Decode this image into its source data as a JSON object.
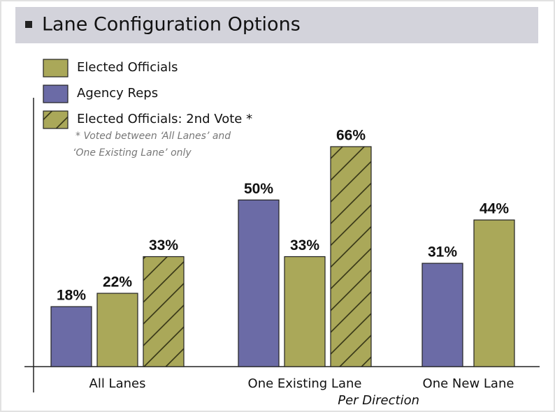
{
  "chart_data": {
    "type": "bar",
    "title": "Lane Configuration Options",
    "categories": [
      "All Lanes",
      "One Existing Lane",
      "One New Lane"
    ],
    "annotation": "Per Direction",
    "footnote": [
      "* Voted between ‘All Lanes’ and",
      "‘One Existing Lane’ only"
    ],
    "legend": "top-left",
    "series": [
      {
        "name": "Agency Reps",
        "color": "#6b6ba6",
        "hatch": false,
        "values": [
          18,
          50,
          31
        ],
        "value_labels": [
          "18%",
          "50%",
          "31%"
        ]
      },
      {
        "name": "Elected Officials",
        "color": "#aaa859",
        "hatch": false,
        "values": [
          22,
          33,
          44
        ],
        "value_labels": [
          "22%",
          "33%",
          "44%"
        ]
      },
      {
        "name": "Elected Officials: 2nd Vote *",
        "color": "#aaa859",
        "hatch": true,
        "values": [
          33,
          66,
          null
        ],
        "value_labels": [
          "33%",
          "66%",
          null
        ]
      }
    ],
    "legend_order": [
      1,
      0,
      2
    ]
  }
}
